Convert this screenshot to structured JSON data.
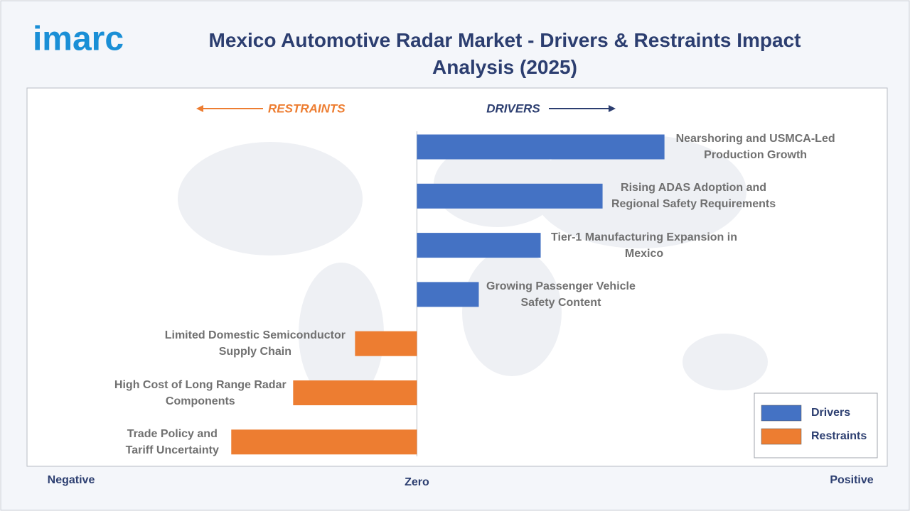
{
  "chart_data": {
    "type": "diverging_bar",
    "logo": "imarc",
    "title": "Mexico Automotive Radar Market - Drivers & Restraints Impact Analysis (2025)",
    "annotations": {
      "restraints": "RESTRAINTS",
      "drivers": "DRIVERS"
    },
    "categories": [
      "Nearshoring and USMCA-Led Production Growth",
      "Rising ADAS Adoption and Regional Safety Requirements",
      "Tier-1 Manufacturing Expansion in Mexico",
      "Growing Passenger Vehicle Safety Content",
      "Limited Domestic Semiconductor Supply Chain",
      "High Cost of Long Range Radar Components",
      "Trade Policy and Tariff Uncertainty"
    ],
    "series": [
      {
        "name": "Drivers",
        "color": "#4472c4",
        "values": [
          4,
          3,
          2,
          1,
          null,
          null,
          null
        ]
      },
      {
        "name": "Restraints",
        "color": "#ed7d31",
        "values": [
          null,
          null,
          null,
          null,
          -1,
          -2,
          -3
        ]
      }
    ],
    "xlim": [
      -6.3,
      7.6
    ],
    "axis_labels": {
      "negative": "Negative",
      "zero": "Zero",
      "positive": "Positive"
    },
    "legend": "lower right"
  }
}
